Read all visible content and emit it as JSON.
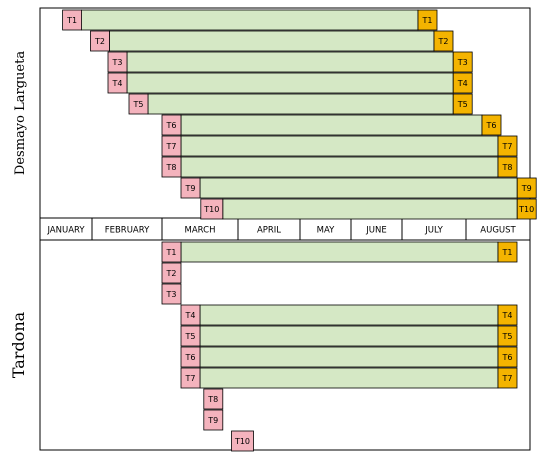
{
  "colors": {
    "start_marker": "#f4b3bd",
    "end_marker": "#f4b400",
    "span_bar": "#d5e8c5",
    "border": "#000000"
  },
  "months": [
    "JANUARY",
    "FEBRUARY",
    "MARCH",
    "APRIL",
    "MAY",
    "JUNE",
    "JULY",
    "AUGUST"
  ],
  "chart_data": {
    "type": "gantt",
    "groups": [
      {
        "label": "Desmayo Largueta",
        "tasks": [
          {
            "name": "T1",
            "start_label": "T1",
            "end_label": "T1",
            "start": "late January",
            "end": "early July"
          },
          {
            "name": "T2",
            "start_label": "T2",
            "end_label": "T2",
            "start": "early February",
            "end": "mid July"
          },
          {
            "name": "T3",
            "start_label": "T3",
            "end_label": "T3",
            "start": "mid February",
            "end": "late July"
          },
          {
            "name": "T4",
            "start_label": "T4",
            "end_label": "T4",
            "start": "mid February",
            "end": "late July"
          },
          {
            "name": "T5",
            "start_label": "T5",
            "end_label": "T5",
            "start": "late February",
            "end": "late July"
          },
          {
            "name": "T6",
            "start_label": "T6",
            "end_label": "T6",
            "start": "early March",
            "end": "early August"
          },
          {
            "name": "T7",
            "start_label": "T7",
            "end_label": "T7",
            "start": "early March",
            "end": "mid August"
          },
          {
            "name": "T8",
            "start_label": "T8",
            "end_label": "T8",
            "start": "early March",
            "end": "mid August"
          },
          {
            "name": "T9",
            "start_label": "T9",
            "end_label": "T9",
            "start": "mid March",
            "end": "late August"
          },
          {
            "name": "T10",
            "start_label": "T10",
            "end_label": "T10",
            "start": "late March",
            "end": "late August"
          }
        ]
      },
      {
        "label": "Tardona",
        "tasks": [
          {
            "name": "T1",
            "start_label": "T1",
            "end_label": "T1",
            "start": "early March",
            "end": "mid August"
          },
          {
            "name": "T2",
            "start_label": "T2",
            "end_label": "",
            "start": "early March",
            "end": null
          },
          {
            "name": "T3",
            "start_label": "T3",
            "end_label": "",
            "start": "early March",
            "end": null
          },
          {
            "name": "T4",
            "start_label": "T4",
            "end_label": "T4",
            "start": "mid March",
            "end": "mid August"
          },
          {
            "name": "T5",
            "start_label": "T5",
            "end_label": "T5",
            "start": "mid March",
            "end": "mid August"
          },
          {
            "name": "T6",
            "start_label": "T6",
            "end_label": "T6",
            "start": "mid March",
            "end": "mid August"
          },
          {
            "name": "T7",
            "start_label": "T7",
            "end_label": "T7",
            "start": "mid March",
            "end": "mid August"
          },
          {
            "name": "T8",
            "start_label": "T8",
            "end_label": "",
            "start": "late March",
            "end": null
          },
          {
            "name": "T9",
            "start_label": "T9",
            "end_label": "",
            "start": "late March",
            "end": null
          },
          {
            "name": "T10",
            "start_label": "T10",
            "end_label": "",
            "start": "early April",
            "end": null
          }
        ]
      }
    ]
  }
}
